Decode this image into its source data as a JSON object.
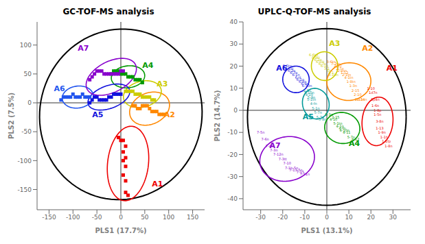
{
  "chart_data": [
    {
      "type": "scatter",
      "title": "GC-TOF-MS analysis",
      "xlabel": "PLS1 (17.7%)",
      "ylabel": "PLS2 (7.5%)",
      "xlim": [
        -175,
        175
      ],
      "ylim": [
        -185,
        140
      ],
      "xticks": [
        -150,
        -100,
        -50,
        0,
        50,
        100,
        150
      ],
      "yticks": [
        -150,
        -100,
        -50,
        0,
        50,
        100
      ],
      "grid": false,
      "reference_lines": {
        "x": 0,
        "y": 0
      },
      "outer_ellipse": {
        "cx": 0,
        "cy": -20,
        "w": 340,
        "h": 295,
        "angle": 5,
        "color": "#000000"
      },
      "series": [
        {
          "name": "A1",
          "color": "#ee0000",
          "marker": "square",
          "x": [
            -5,
            0,
            5,
            10,
            5,
            10,
            5,
            10,
            5,
            10,
            10,
            15
          ],
          "y": [
            -60,
            -65,
            -65,
            -75,
            -85,
            -95,
            -100,
            -110,
            -125,
            -135,
            -155,
            -160
          ],
          "ellipse": {
            "cx": 15,
            "cy": -105,
            "w": 85,
            "h": 130,
            "angle": -10
          },
          "label_x": 65,
          "label_y": -145
        },
        {
          "name": "A2",
          "color": "#ff8800",
          "marker": "square",
          "x": [
            25,
            30,
            35,
            40,
            45,
            50,
            55,
            60,
            65,
            70,
            75,
            80,
            85,
            90
          ],
          "y": [
            -5,
            -5,
            -10,
            -10,
            -5,
            -5,
            -5,
            -10,
            -15,
            -15,
            -15,
            -20,
            -20,
            -20
          ],
          "ellipse": {
            "cx": 60,
            "cy": -10,
            "w": 85,
            "h": 55,
            "angle": 15
          },
          "label_x": 90,
          "label_y": -25
        },
        {
          "name": "A3",
          "color": "#cccc00",
          "marker": "square",
          "x": [
            10,
            15,
            20,
            25,
            30,
            35,
            40,
            45,
            50,
            55,
            60,
            65,
            70
          ],
          "y": [
            20,
            20,
            20,
            20,
            15,
            15,
            15,
            10,
            10,
            10,
            10,
            5,
            5
          ],
          "ellipse": {
            "cx": 45,
            "cy": 15,
            "w": 80,
            "h": 45,
            "angle": 10
          },
          "label_x": 75,
          "label_y": 28
        },
        {
          "name": "A4",
          "color": "#009900",
          "marker": "square",
          "x": [
            -20,
            -15,
            -10,
            -5,
            0,
            5,
            10,
            15,
            20,
            25,
            30,
            35,
            40,
            45
          ],
          "y": [
            50,
            55,
            55,
            55,
            50,
            50,
            50,
            45,
            45,
            45,
            40,
            40,
            40,
            35
          ],
          "ellipse": {
            "cx": 15,
            "cy": 45,
            "w": 70,
            "h": 38,
            "angle": 5
          },
          "label_x": 45,
          "label_y": 60
        },
        {
          "name": "A5",
          "color": "#1111dd",
          "marker": "square",
          "x": [
            -65,
            -60,
            -55,
            -50,
            -45,
            -40,
            -35,
            -30,
            -25,
            -20,
            -15,
            -10,
            -5,
            0
          ],
          "y": [
            0,
            5,
            10,
            10,
            5,
            5,
            5,
            5,
            10,
            10,
            15,
            15,
            15,
            15
          ],
          "ellipse": {
            "cx": -25,
            "cy": 10,
            "w": 90,
            "h": 40,
            "angle": 15
          },
          "label_x": -60,
          "label_y": -25
        },
        {
          "name": "A6",
          "color": "#2255ee",
          "marker": "square",
          "x": [
            -125,
            -120,
            -115,
            -110,
            -105,
            -100,
            -95,
            -90,
            -85,
            -80,
            -75,
            -70,
            -65
          ],
          "y": [
            5,
            10,
            10,
            10,
            10,
            15,
            10,
            10,
            10,
            15,
            10,
            10,
            10
          ],
          "ellipse": {
            "cx": -90,
            "cy": 10,
            "w": 65,
            "h": 38,
            "angle": 5
          },
          "label_x": -140,
          "label_y": 20
        },
        {
          "name": "A7",
          "color": "#8800cc",
          "marker": "square",
          "x": [
            -65,
            -60,
            -55,
            -50,
            -45,
            -40,
            -35,
            -30,
            -25,
            -20,
            -15,
            -10,
            -5,
            0,
            5
          ],
          "y": [
            40,
            45,
            50,
            55,
            55,
            55,
            50,
            50,
            50,
            50,
            50,
            50,
            50,
            55,
            55
          ],
          "ellipse": {
            "cx": -20,
            "cy": 45,
            "w": 110,
            "h": 55,
            "angle": 20
          },
          "label_x": -90,
          "label_y": 90
        }
      ]
    },
    {
      "type": "scatter",
      "title": "UPLC-Q-TOF-MS analysis",
      "xlabel": "PLS1 (13.1%)",
      "ylabel": "PLS2 (14.7%)",
      "xlim": [
        -38,
        38
      ],
      "ylim": [
        -45,
        40
      ],
      "xticks": [
        -30,
        -20,
        -10,
        0,
        10,
        20,
        30
      ],
      "yticks": [
        -40,
        -30,
        -20,
        -10,
        0,
        10,
        20,
        30,
        40
      ],
      "grid": false,
      "reference_lines": {
        "x": 0,
        "y": 0
      },
      "outer_ellipse": {
        "cx": 0,
        "cy": -3,
        "w": 72,
        "h": 80,
        "angle": 0,
        "color": "#000000"
      },
      "series": [
        {
          "name": "A1",
          "color": "#ee0000",
          "marker": "none",
          "x": [
            20,
            21,
            22,
            22,
            23,
            23,
            24,
            24,
            25,
            26,
            27,
            28
          ],
          "y": [
            10,
            8,
            5,
            2,
            0,
            -2,
            -5,
            -8,
            -10,
            -12,
            -14,
            -16
          ],
          "point_labels": [
            "1-10",
            "1d7n",
            "1p4n",
            "1-6n",
            "1-8p",
            "1-5n",
            "3-8n",
            "1-13",
            "1-9n",
            "1-1h",
            "1-1fp",
            "1-8n"
          ],
          "ellipse": {
            "cx": 23,
            "cy": -5,
            "w": 14,
            "h": 22,
            "angle": -5
          },
          "label_x": 27,
          "label_y": 18
        },
        {
          "name": "A2",
          "color": "#ff8800",
          "marker": "none",
          "x": [
            2,
            4,
            5,
            6,
            7,
            8,
            9,
            10,
            11,
            12,
            13,
            14,
            15,
            16
          ],
          "y": [
            22,
            21,
            20,
            19,
            18,
            17,
            16,
            15,
            13,
            11,
            9,
            7,
            5,
            5
          ],
          "point_labels": [
            "3-6tn",
            "7-2tn",
            "2-10",
            "2-7n",
            "2-8sn",
            "1-12",
            "2-1tn",
            "4-1tn",
            "1-8tn",
            "1-3n",
            "2-15",
            "2-10",
            "2-13n",
            "2-14n"
          ],
          "ellipse": {
            "cx": 10,
            "cy": 13,
            "w": 20,
            "h": 17,
            "angle": 5
          },
          "label_x": 16,
          "label_y": 27
        },
        {
          "name": "A3",
          "color": "#cccc00",
          "marker": "none",
          "x": [
            -6,
            -5,
            -4,
            -3,
            -2,
            -1,
            0,
            1,
            2,
            3
          ],
          "y": [
            25,
            24,
            23,
            22,
            21,
            20,
            19,
            18,
            17,
            16
          ],
          "point_labels": [
            "6-6tn",
            "8-9tt",
            "6-2n",
            "6-5tt",
            "6-7n",
            "6-1n",
            "3-1",
            "5n",
            "4-1",
            "3-10n"
          ],
          "ellipse": {
            "cx": -1,
            "cy": 20,
            "w": 12,
            "h": 13,
            "angle": 5
          },
          "label_x": 1,
          "label_y": 29
        },
        {
          "name": "A4",
          "color": "#009900",
          "marker": "none",
          "x": [
            1,
            3,
            5,
            7,
            9,
            11,
            13,
            4,
            6,
            8
          ],
          "y": [
            -2,
            -4,
            -6,
            -8,
            -10,
            -12,
            -13,
            -3,
            -7,
            -9
          ],
          "point_labels": [
            "5-3n",
            "4-10",
            "5-1tn",
            "4-fn",
            "4-11",
            "5-7n",
            "4-12",
            "2-15",
            "4-1n",
            "4-10n"
          ],
          "ellipse": {
            "cx": 7,
            "cy": -8,
            "w": 16,
            "h": 14,
            "angle": -10
          },
          "label_x": 10,
          "label_y": -16
        },
        {
          "name": "A5",
          "color": "#009999",
          "marker": "none",
          "x": [
            -9,
            -8,
            -7,
            -6,
            -5,
            -4,
            -3,
            -2,
            -7,
            -8
          ],
          "y": [
            9,
            7,
            5,
            3,
            1,
            -1,
            -3,
            -4,
            6,
            8
          ],
          "point_labels": [
            "5-3n",
            "4-10",
            "5-1tn",
            "4-fn",
            "5-1n",
            "5-7n",
            "5-7n",
            "5-8n",
            "5-9n",
            "5-10n"
          ],
          "ellipse": {
            "cx": -5,
            "cy": 3,
            "w": 12,
            "h": 14,
            "angle": 15
          },
          "label_x": -11,
          "label_y": -4
        },
        {
          "name": "A6",
          "color": "#1111dd",
          "marker": "none",
          "x": [
            -18,
            -17,
            -16,
            -15,
            -14,
            -13,
            -12,
            -11,
            -10,
            -9
          ],
          "y": [
            20,
            19,
            18,
            17,
            16,
            15,
            14,
            13,
            12,
            11
          ],
          "point_labels": [
            "6-6tn",
            "6-5tt",
            "6-2n",
            "6-7n",
            "6-1n",
            "6-tt",
            "6-1n",
            "6-8n",
            "6-9n",
            "6-10n"
          ],
          "ellipse": {
            "cx": -14,
            "cy": 14,
            "w": 12,
            "h": 12,
            "angle": 25
          },
          "label_x": -23,
          "label_y": 18
        },
        {
          "name": "A7",
          "color": "#8800cc",
          "marker": "none",
          "x": [
            -30,
            -28,
            -26,
            -24,
            -22,
            -20,
            -18,
            -16,
            -14,
            -12,
            -10
          ],
          "y": [
            -10,
            -13,
            -16,
            -18,
            -20,
            -22,
            -24,
            -26,
            -27,
            -28,
            -29
          ],
          "point_labels": [
            "7-5n",
            "7-6n",
            "7-4n",
            "7-3n",
            "7-12n",
            "7-3tt",
            "7-10",
            "7-1b-5n",
            "7-13-5n",
            "7-15",
            "7-11n"
          ],
          "ellipse": {
            "cx": -18,
            "cy": -22,
            "w": 25,
            "h": 20,
            "angle": 12
          },
          "label_x": -26,
          "label_y": -17
        }
      ]
    }
  ]
}
